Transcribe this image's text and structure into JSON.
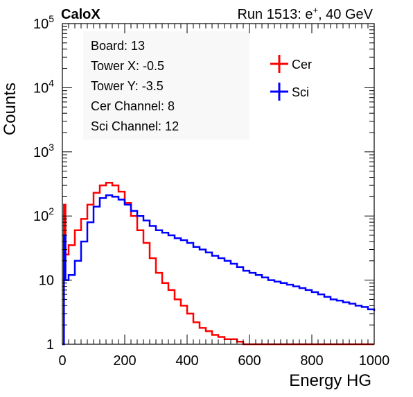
{
  "header": {
    "left_label": "CaloX",
    "run_text_prefix": "Run 1513: e",
    "run_text_sup": "+",
    "run_text_suffix": ", 40 GeV"
  },
  "info_box": {
    "lines": [
      "Board: 13",
      "Tower X: -0.5",
      "Tower Y: -3.5",
      "Cer Channel: 8",
      "Sci Channel: 12"
    ]
  },
  "colors": {
    "cer": "#ff0000",
    "sci": "#0000ff",
    "axis": "#000000"
  },
  "chart_data": {
    "type": "line",
    "xlabel": "Energy HG",
    "ylabel": "Counts",
    "xlim": [
      0,
      1000
    ],
    "ylim": [
      1,
      100000
    ],
    "yscale": "log",
    "x_ticks": [
      0,
      200,
      400,
      600,
      800,
      1000
    ],
    "y_ticks": [
      {
        "value": 1,
        "base": "1",
        "exp": ""
      },
      {
        "value": 10,
        "base": "10",
        "exp": ""
      },
      {
        "value": 100,
        "base": "10",
        "exp": "2"
      },
      {
        "value": 1000,
        "base": "10",
        "exp": "3"
      },
      {
        "value": 10000,
        "base": "10",
        "exp": "4"
      },
      {
        "value": 100000,
        "base": "10",
        "exp": "5"
      }
    ],
    "legend": {
      "placement": "top-right"
    },
    "series": [
      {
        "name": "Cer",
        "color": "#ff0000",
        "x": [
          0,
          5,
          10,
          20,
          40,
          60,
          80,
          100,
          120,
          140,
          160,
          180,
          200,
          220,
          240,
          260,
          280,
          300,
          320,
          340,
          360,
          380,
          400,
          420,
          440,
          460,
          480,
          500,
          520,
          540,
          560,
          580,
          600,
          620,
          640,
          660,
          680,
          700,
          720,
          740,
          760,
          780,
          800,
          820,
          840,
          860,
          880,
          900,
          920,
          940,
          960,
          980,
          1000
        ],
        "y": [
          1,
          150,
          25,
          35,
          60,
          90,
          150,
          230,
          300,
          330,
          300,
          240,
          160,
          100,
          60,
          38,
          22,
          13,
          9,
          7,
          5,
          4,
          3,
          2.2,
          1.8,
          1.6,
          1.4,
          1.3,
          1.2,
          1.2,
          1.1,
          1,
          1,
          1,
          1,
          1,
          1,
          1,
          1,
          1,
          1,
          1,
          1,
          1,
          1,
          1,
          1,
          1,
          1,
          1,
          1,
          1,
          1
        ]
      },
      {
        "name": "Sci",
        "color": "#0000ff",
        "x": [
          0,
          5,
          10,
          20,
          40,
          60,
          80,
          100,
          120,
          140,
          160,
          180,
          200,
          220,
          240,
          260,
          280,
          300,
          320,
          340,
          360,
          380,
          400,
          420,
          440,
          460,
          480,
          500,
          520,
          540,
          560,
          580,
          600,
          620,
          640,
          660,
          680,
          700,
          720,
          740,
          760,
          780,
          800,
          820,
          840,
          860,
          880,
          900,
          920,
          940,
          960,
          980,
          1000
        ],
        "y": [
          1,
          50,
          10,
          12,
          20,
          40,
          80,
          140,
          190,
          210,
          200,
          180,
          150,
          120,
          100,
          85,
          70,
          60,
          55,
          50,
          45,
          42,
          38,
          33,
          30,
          27,
          24,
          22,
          20,
          18,
          16,
          14,
          13,
          12,
          11,
          10,
          9.5,
          9,
          8.5,
          8,
          7.5,
          7,
          6.5,
          6,
          5.5,
          5,
          4.8,
          4.5,
          4.3,
          4,
          3.8,
          3.5,
          3.3
        ]
      }
    ]
  }
}
